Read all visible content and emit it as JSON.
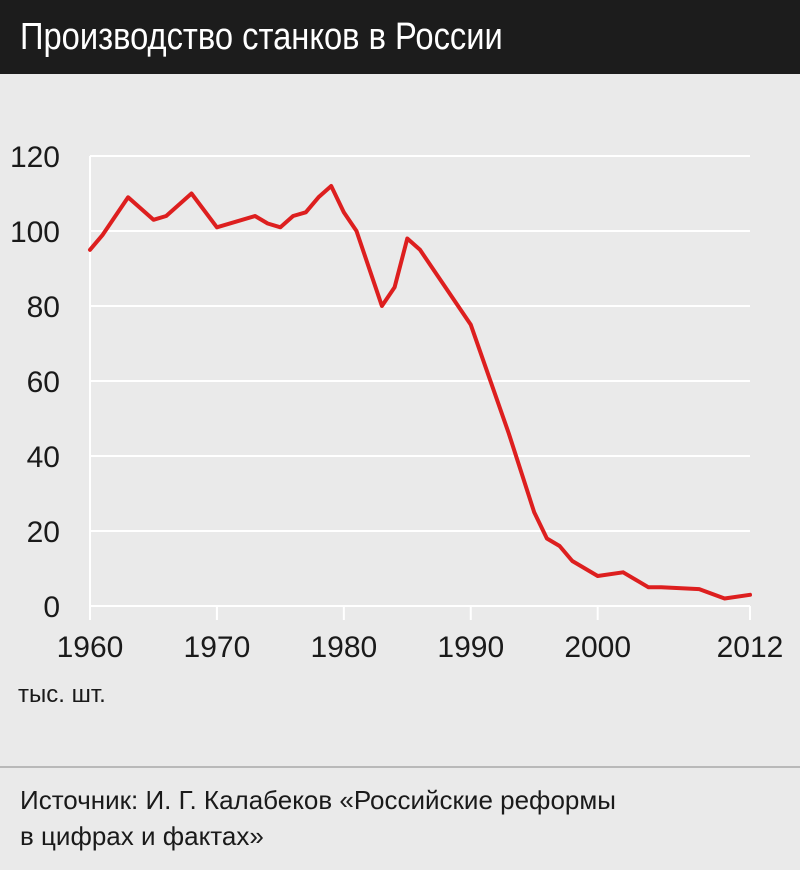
{
  "header": {
    "title": "Производство станков в России"
  },
  "footer": {
    "source": "Источник: И. Г. Калабеков «Российские реформы\nв цифрах и фактах»"
  },
  "colors": {
    "header_bg": "#1c1c1c",
    "background": "#eaeaea",
    "line": "#dd1f1f",
    "grid": "#ffffff"
  },
  "chart_data": {
    "type": "line",
    "title": "Производство станков в России",
    "unit_label": "тыс. шт.",
    "xlim": [
      1960,
      2012
    ],
    "ylim": [
      0,
      120
    ],
    "x_ticks": [
      1960,
      1970,
      1980,
      1990,
      2000,
      2012
    ],
    "y_ticks": [
      0,
      20,
      40,
      60,
      80,
      100,
      120
    ],
    "grid": true,
    "series": [
      {
        "color": "#dd1f1f",
        "points": [
          [
            1960,
            95
          ],
          [
            1961,
            99
          ],
          [
            1963,
            109
          ],
          [
            1965,
            103
          ],
          [
            1966,
            104
          ],
          [
            1968,
            110
          ],
          [
            1970,
            101
          ],
          [
            1973,
            104
          ],
          [
            1974,
            102
          ],
          [
            1975,
            101
          ],
          [
            1976,
            104
          ],
          [
            1977,
            105
          ],
          [
            1978,
            109
          ],
          [
            1979,
            112
          ],
          [
            1980,
            105
          ],
          [
            1981,
            100
          ],
          [
            1983,
            80
          ],
          [
            1984,
            85
          ],
          [
            1985,
            98
          ],
          [
            1986,
            95
          ],
          [
            1988,
            85
          ],
          [
            1990,
            75
          ],
          [
            1993,
            46
          ],
          [
            1995,
            25
          ],
          [
            1996,
            18
          ],
          [
            1997,
            16
          ],
          [
            1998,
            12
          ],
          [
            2000,
            8
          ],
          [
            2002,
            9
          ],
          [
            2004,
            5
          ],
          [
            2005,
            5
          ],
          [
            2008,
            4.5
          ],
          [
            2010,
            2
          ],
          [
            2012,
            3
          ]
        ]
      }
    ]
  }
}
